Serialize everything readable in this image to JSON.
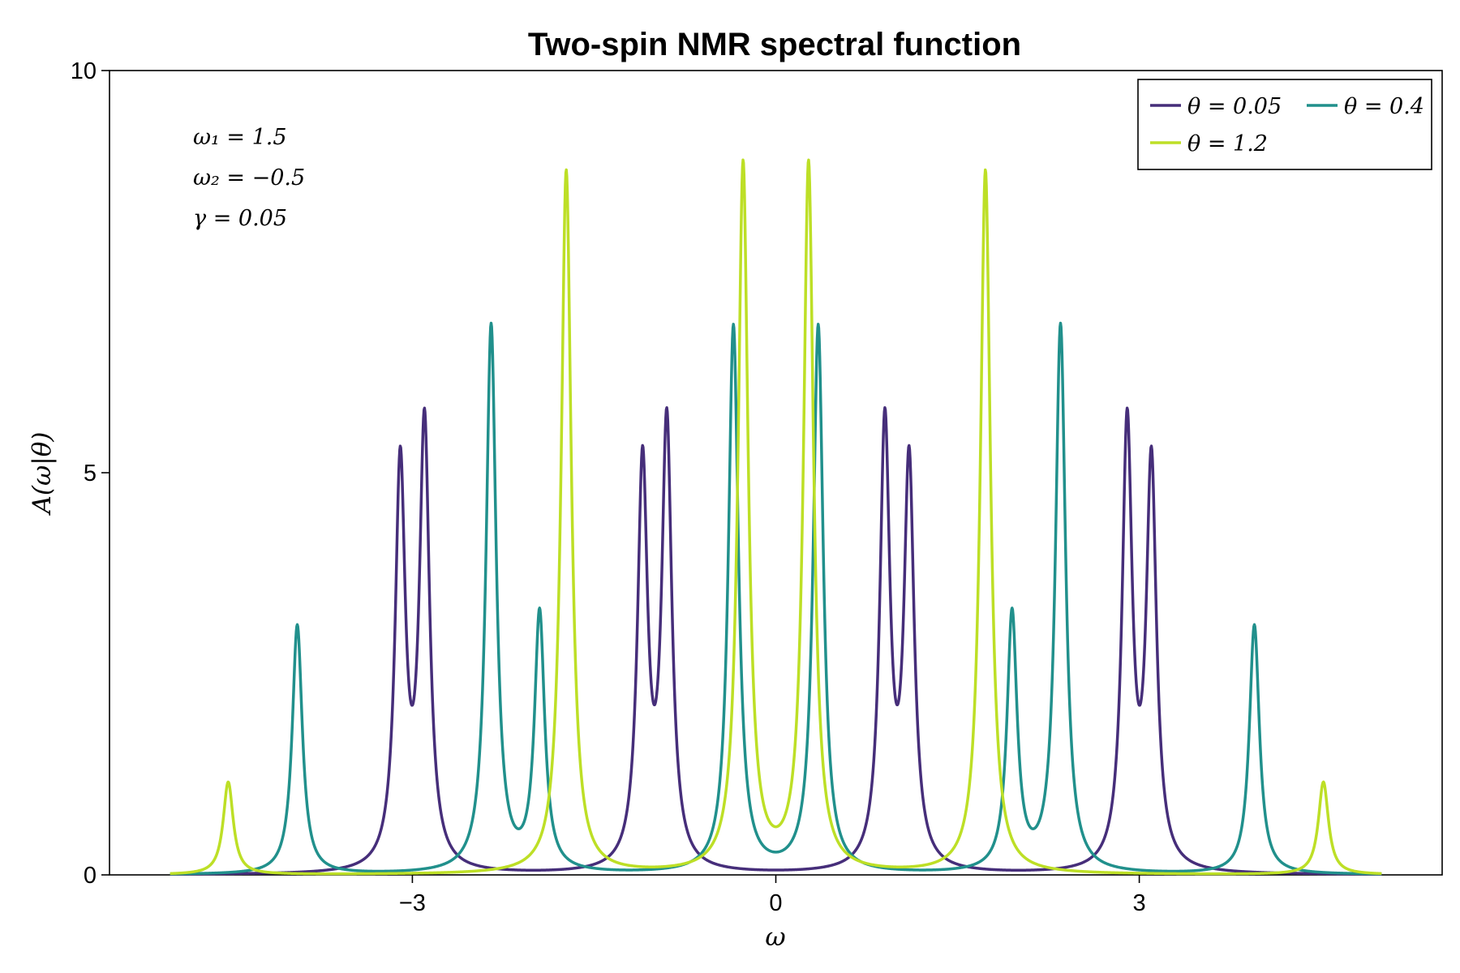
{
  "chart_data": {
    "type": "line",
    "title": "Two-spin NMR spectral function",
    "xlabel": "ω",
    "ylabel": "A(ω|θ)",
    "xlim": [
      -5.5,
      5.5
    ],
    "ylim": [
      0,
      10
    ],
    "xticks": [
      -3,
      0,
      3
    ],
    "xtick_labels": [
      "−3",
      "0",
      "3"
    ],
    "yticks": [
      0,
      5,
      10
    ],
    "ytick_labels": [
      "0",
      "5",
      "10"
    ],
    "x_range": [
      -5.0,
      5.0
    ],
    "grid": false,
    "legend_position": "top-right",
    "annotations": [
      "ω₁ = 1.5",
      "ω₂ = −0.5",
      "γ = 0.05"
    ],
    "series": [
      {
        "name": "θ = 0.05",
        "color": "#462e7a",
        "peaks": [
          {
            "x": -3.1,
            "height": 5.0
          },
          {
            "x": -2.9,
            "height": 5.5
          },
          {
            "x": -1.1,
            "height": 5.0
          },
          {
            "x": -0.9,
            "height": 5.5
          },
          {
            "x": 0.9,
            "height": 5.5
          },
          {
            "x": 1.1,
            "height": 5.0
          },
          {
            "x": 2.9,
            "height": 5.5
          },
          {
            "x": 3.1,
            "height": 5.0
          }
        ]
      },
      {
        "name": "θ = 0.4",
        "color": "#21908c",
        "peaks": [
          {
            "x": -3.95,
            "height": 3.1
          },
          {
            "x": -2.35,
            "height": 6.8
          },
          {
            "x": -1.95,
            "height": 3.2
          },
          {
            "x": -0.35,
            "height": 6.8
          },
          {
            "x": 0.35,
            "height": 6.8
          },
          {
            "x": 1.95,
            "height": 3.2
          },
          {
            "x": 2.35,
            "height": 6.8
          },
          {
            "x": 3.95,
            "height": 3.1
          }
        ]
      },
      {
        "name": "θ = 1.2",
        "color": "#bddf26",
        "peaks": [
          {
            "x": -4.52,
            "height": 1.15
          },
          {
            "x": -1.73,
            "height": 8.75
          },
          {
            "x": -0.27,
            "height": 8.8
          },
          {
            "x": 0.27,
            "height": 8.8
          },
          {
            "x": 1.73,
            "height": 8.75
          },
          {
            "x": 4.52,
            "height": 1.15
          }
        ]
      }
    ]
  }
}
